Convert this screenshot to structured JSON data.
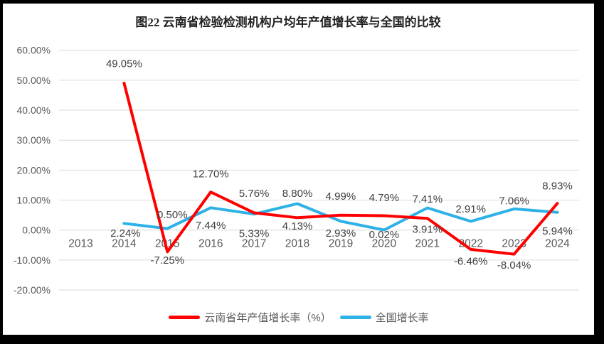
{
  "chart_data": {
    "type": "line",
    "title": "图22  云南省检验检测机构户均年产值增长率与全国的比较",
    "categories": [
      "2013",
      "2014",
      "2015",
      "2016",
      "2017",
      "2018",
      "2019",
      "2020",
      "2021",
      "2022",
      "2023",
      "2024"
    ],
    "series": [
      {
        "name": "全国增长率",
        "color": "#2EB1E6",
        "values": [
          null,
          2.24,
          0.5,
          7.44,
          5.33,
          8.8,
          2.93,
          0.02,
          7.41,
          2.91,
          7.06,
          5.94
        ],
        "labels": [
          null,
          "2.24%",
          "0.50%",
          "7.44%",
          "5.33%",
          "8.80%",
          "2.93%",
          "0.02%",
          "7.41%",
          "2.91%",
          "7.06%",
          "5.94%"
        ],
        "label_dy": [
          0,
          14,
          -19,
          25,
          28,
          -14,
          17,
          7,
          -12,
          -17,
          -11,
          27
        ],
        "label_dx": [
          0,
          2,
          7,
          0,
          0,
          0,
          0,
          0,
          0,
          0,
          0,
          0
        ]
      },
      {
        "name": "云南省年产值增长率（%）",
        "color": "#FF0000",
        "values": [
          null,
          49.05,
          -7.25,
          12.7,
          5.76,
          4.13,
          4.99,
          4.79,
          3.91,
          -6.46,
          -8.04,
          8.93
        ],
        "labels": [
          null,
          "49.05%",
          "-7.25%",
          "12.70%",
          "5.76%",
          "4.13%",
          "4.99%",
          "4.79%",
          "3.91%",
          "-6.46%",
          "-8.04%",
          "8.93%"
        ],
        "label_dy": [
          0,
          -27,
          12,
          -25,
          -27,
          12,
          -26,
          -25,
          16,
          17,
          16,
          -24
        ],
        "label_dx": [
          0,
          0,
          0,
          0,
          0,
          0,
          0,
          0,
          0,
          0,
          0,
          0
        ]
      }
    ],
    "y_ticks": [
      "60.00%",
      "50.00%",
      "40.00%",
      "30.00%",
      "20.00%",
      "10.00%",
      "0.00%",
      "-10.00%",
      "-20.00%"
    ],
    "y_tick_values": [
      60,
      50,
      40,
      30,
      20,
      10,
      0,
      -10,
      -20
    ],
    "ylim": [
      -20,
      60
    ],
    "grid": true,
    "legend_position": "bottom",
    "legend": [
      {
        "label": "云南省年产值增长率（%）",
        "color": "#FF0000"
      },
      {
        "label": "全国增长率",
        "color": "#2EB1E6"
      }
    ],
    "gridline_color": "#D9D9D9",
    "axis_text_color": "#595959",
    "data_label_color": "#404040"
  }
}
